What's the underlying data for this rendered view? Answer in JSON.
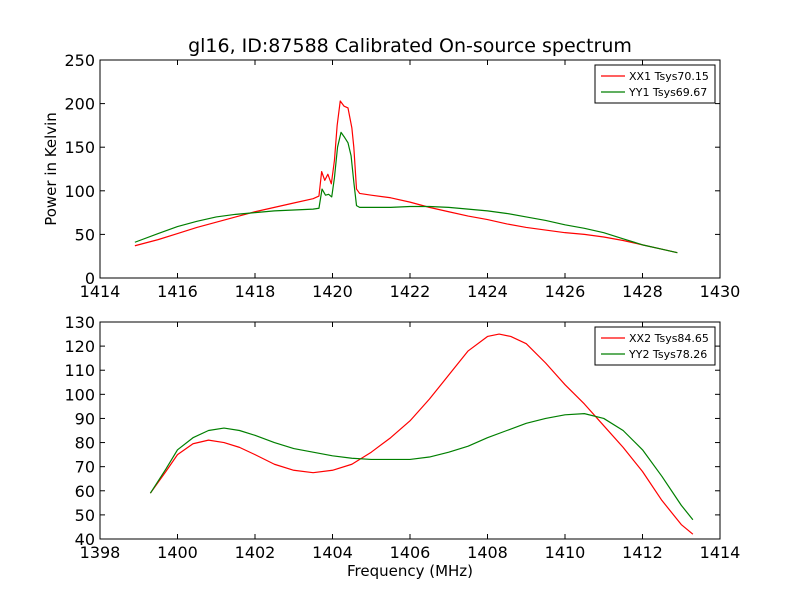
{
  "chart_data": [
    {
      "type": "line",
      "title": "gl16, ID:87588 Calibrated On-source spectrum",
      "xlabel": "",
      "ylabel": "Power in Kelvin",
      "xlim": [
        1414,
        1430
      ],
      "ylim": [
        0,
        250
      ],
      "xticks": [
        1414,
        1416,
        1418,
        1420,
        1422,
        1424,
        1426,
        1428,
        1430
      ],
      "yticks": [
        0,
        50,
        100,
        150,
        200,
        250
      ],
      "legend_position": "top-right",
      "series": [
        {
          "name": "XX1 Tsys70.15",
          "color": "#ff0000",
          "points": [
            [
              1414.9,
              37
            ],
            [
              1415.5,
              44
            ],
            [
              1416.0,
              51
            ],
            [
              1416.5,
              58
            ],
            [
              1417.0,
              64
            ],
            [
              1417.5,
              70
            ],
            [
              1418.0,
              76
            ],
            [
              1418.5,
              81
            ],
            [
              1419.0,
              86
            ],
            [
              1419.5,
              91
            ],
            [
              1419.65,
              94
            ],
            [
              1419.72,
              122
            ],
            [
              1419.8,
              112
            ],
            [
              1419.88,
              119
            ],
            [
              1419.97,
              108
            ],
            [
              1420.05,
              135
            ],
            [
              1420.12,
              175
            ],
            [
              1420.2,
              203
            ],
            [
              1420.3,
              197
            ],
            [
              1420.4,
              195
            ],
            [
              1420.5,
              172
            ],
            [
              1420.55,
              150
            ],
            [
              1420.62,
              102
            ],
            [
              1420.7,
              97
            ],
            [
              1421.0,
              95
            ],
            [
              1421.5,
              92
            ],
            [
              1422.0,
              87
            ],
            [
              1422.5,
              81
            ],
            [
              1423.0,
              76
            ],
            [
              1423.5,
              71
            ],
            [
              1424.0,
              67
            ],
            [
              1424.5,
              62
            ],
            [
              1425.0,
              58
            ],
            [
              1425.5,
              55
            ],
            [
              1426.0,
              52
            ],
            [
              1426.5,
              50
            ],
            [
              1427.0,
              47
            ],
            [
              1427.5,
              43
            ],
            [
              1428.0,
              38
            ],
            [
              1428.5,
              33
            ],
            [
              1428.9,
              29
            ]
          ]
        },
        {
          "name": "YY1 Tsys69.67",
          "color": "#007f00",
          "points": [
            [
              1414.9,
              41
            ],
            [
              1415.5,
              51
            ],
            [
              1416.0,
              59
            ],
            [
              1416.5,
              65
            ],
            [
              1417.0,
              70
            ],
            [
              1417.5,
              73
            ],
            [
              1418.0,
              75
            ],
            [
              1418.5,
              77
            ],
            [
              1419.0,
              78
            ],
            [
              1419.5,
              79
            ],
            [
              1419.65,
              80
            ],
            [
              1419.73,
              102
            ],
            [
              1419.82,
              95
            ],
            [
              1419.9,
              96
            ],
            [
              1419.98,
              93
            ],
            [
              1420.05,
              115
            ],
            [
              1420.13,
              150
            ],
            [
              1420.22,
              167
            ],
            [
              1420.3,
              162
            ],
            [
              1420.4,
              155
            ],
            [
              1420.48,
              140
            ],
            [
              1420.55,
              110
            ],
            [
              1420.62,
              83
            ],
            [
              1420.7,
              81
            ],
            [
              1421.0,
              81
            ],
            [
              1421.5,
              81
            ],
            [
              1422.0,
              82
            ],
            [
              1422.5,
              82
            ],
            [
              1423.0,
              81
            ],
            [
              1423.5,
              79
            ],
            [
              1424.0,
              77
            ],
            [
              1424.5,
              74
            ],
            [
              1425.0,
              70
            ],
            [
              1425.5,
              66
            ],
            [
              1426.0,
              61
            ],
            [
              1426.5,
              57
            ],
            [
              1427.0,
              52
            ],
            [
              1427.5,
              45
            ],
            [
              1428.0,
              38
            ],
            [
              1428.5,
              33
            ],
            [
              1428.9,
              29
            ]
          ]
        }
      ]
    },
    {
      "type": "line",
      "title": "",
      "xlabel": "Frequency (MHz)",
      "ylabel": "",
      "xlim": [
        1398,
        1414
      ],
      "ylim": [
        40,
        130
      ],
      "xticks": [
        1398,
        1400,
        1402,
        1404,
        1406,
        1408,
        1410,
        1412,
        1414
      ],
      "yticks": [
        40,
        50,
        60,
        70,
        80,
        90,
        100,
        110,
        120,
        130
      ],
      "legend_position": "top-right",
      "series": [
        {
          "name": "XX2 Tsys84.65",
          "color": "#ff0000",
          "points": [
            [
              1399.3,
              59
            ],
            [
              1399.7,
              68
            ],
            [
              1400.0,
              75
            ],
            [
              1400.4,
              79.5
            ],
            [
              1400.8,
              81
            ],
            [
              1401.2,
              80
            ],
            [
              1401.6,
              78
            ],
            [
              1402.0,
              75
            ],
            [
              1402.5,
              71
            ],
            [
              1403.0,
              68.5
            ],
            [
              1403.5,
              67.5
            ],
            [
              1404.0,
              68.5
            ],
            [
              1404.5,
              71
            ],
            [
              1405.0,
              76
            ],
            [
              1405.5,
              82
            ],
            [
              1406.0,
              89
            ],
            [
              1406.5,
              98
            ],
            [
              1407.0,
              108
            ],
            [
              1407.5,
              118
            ],
            [
              1408.0,
              124
            ],
            [
              1408.3,
              125
            ],
            [
              1408.6,
              124
            ],
            [
              1409.0,
              121
            ],
            [
              1409.5,
              113
            ],
            [
              1410.0,
              104
            ],
            [
              1410.5,
              96
            ],
            [
              1411.0,
              87
            ],
            [
              1411.5,
              78
            ],
            [
              1412.0,
              68
            ],
            [
              1412.5,
              56
            ],
            [
              1413.0,
              46
            ],
            [
              1413.3,
              42
            ]
          ]
        },
        {
          "name": "YY2 Tsys78.26",
          "color": "#007f00",
          "points": [
            [
              1399.3,
              59
            ],
            [
              1399.7,
              69
            ],
            [
              1400.0,
              77
            ],
            [
              1400.4,
              82
            ],
            [
              1400.8,
              85
            ],
            [
              1401.2,
              86
            ],
            [
              1401.6,
              85
            ],
            [
              1402.0,
              83
            ],
            [
              1402.5,
              80
            ],
            [
              1403.0,
              77.5
            ],
            [
              1403.5,
              76
            ],
            [
              1404.0,
              74.5
            ],
            [
              1404.5,
              73.5
            ],
            [
              1405.0,
              73
            ],
            [
              1405.5,
              73
            ],
            [
              1406.0,
              73
            ],
            [
              1406.5,
              74
            ],
            [
              1407.0,
              76
            ],
            [
              1407.5,
              78.5
            ],
            [
              1408.0,
              82
            ],
            [
              1408.5,
              85
            ],
            [
              1409.0,
              88
            ],
            [
              1409.5,
              90
            ],
            [
              1410.0,
              91.5
            ],
            [
              1410.5,
              92
            ],
            [
              1411.0,
              90
            ],
            [
              1411.5,
              85
            ],
            [
              1412.0,
              77
            ],
            [
              1412.5,
              66
            ],
            [
              1413.0,
              54
            ],
            [
              1413.3,
              48
            ]
          ]
        }
      ]
    }
  ]
}
